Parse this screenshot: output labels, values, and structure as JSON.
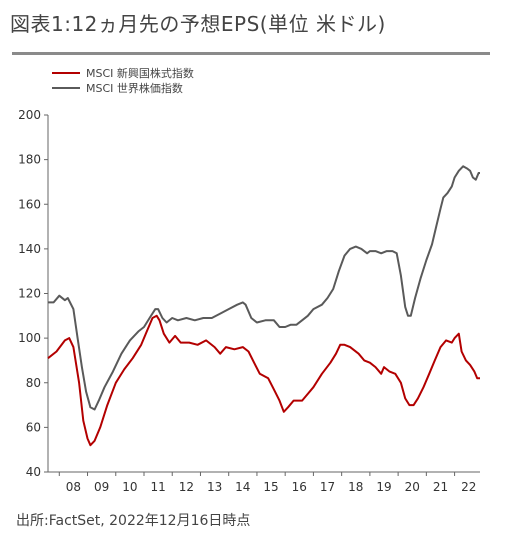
{
  "title": "図表1:12ヵ月先の予想EPS(単位 米ドル)",
  "source": "出所:FactSet, 2022年12月16日時点",
  "chart_data": {
    "type": "line",
    "title": "図表1:12ヵ月先の予想EPS(単位 米ドル)",
    "xlabel": "",
    "ylabel": "",
    "ylim": [
      40,
      200
    ],
    "yticks": [
      40,
      60,
      80,
      100,
      120,
      140,
      160,
      180,
      200
    ],
    "xlim": [
      2007.6,
      2022.9
    ],
    "xticks": [
      {
        "label": "08",
        "x": 2008.5
      },
      {
        "label": "09",
        "x": 2009.5
      },
      {
        "label": "10",
        "x": 2010.5
      },
      {
        "label": "11",
        "x": 2011.5
      },
      {
        "label": "12",
        "x": 2012.5
      },
      {
        "label": "13",
        "x": 2013.5
      },
      {
        "label": "14",
        "x": 2014.5
      },
      {
        "label": "15",
        "x": 2015.5
      },
      {
        "label": "16",
        "x": 2016.5
      },
      {
        "label": "17",
        "x": 2017.5
      },
      {
        "label": "18",
        "x": 2018.5
      },
      {
        "label": "19",
        "x": 2019.5
      },
      {
        "label": "20",
        "x": 2020.5
      },
      {
        "label": "21",
        "x": 2021.5
      },
      {
        "label": "22",
        "x": 2022.5
      }
    ],
    "grid": false,
    "legend": "top-left",
    "series": [
      {
        "name": "MSCI 新興国株式指数",
        "color": "#b30000",
        "points": [
          [
            2007.6,
            91
          ],
          [
            2007.9,
            94
          ],
          [
            2008.2,
            99
          ],
          [
            2008.35,
            100
          ],
          [
            2008.5,
            96
          ],
          [
            2008.7,
            80
          ],
          [
            2008.85,
            63
          ],
          [
            2009.0,
            55
          ],
          [
            2009.1,
            52
          ],
          [
            2009.25,
            54
          ],
          [
            2009.45,
            60
          ],
          [
            2009.7,
            70
          ],
          [
            2010.0,
            80
          ],
          [
            2010.3,
            86
          ],
          [
            2010.6,
            91
          ],
          [
            2010.9,
            97
          ],
          [
            2011.1,
            103
          ],
          [
            2011.3,
            109
          ],
          [
            2011.45,
            110
          ],
          [
            2011.55,
            108
          ],
          [
            2011.7,
            102
          ],
          [
            2011.9,
            98
          ],
          [
            2012.1,
            101
          ],
          [
            2012.3,
            98
          ],
          [
            2012.6,
            98
          ],
          [
            2012.9,
            97
          ],
          [
            2013.2,
            99
          ],
          [
            2013.5,
            96
          ],
          [
            2013.7,
            93
          ],
          [
            2013.9,
            96
          ],
          [
            2014.2,
            95
          ],
          [
            2014.5,
            96
          ],
          [
            2014.7,
            94
          ],
          [
            2014.9,
            89
          ],
          [
            2015.1,
            84
          ],
          [
            2015.4,
            82
          ],
          [
            2015.6,
            77
          ],
          [
            2015.8,
            72
          ],
          [
            2015.95,
            67
          ],
          [
            2016.1,
            69
          ],
          [
            2016.3,
            72
          ],
          [
            2016.6,
            72
          ],
          [
            2016.8,
            75
          ],
          [
            2017.0,
            78
          ],
          [
            2017.3,
            84
          ],
          [
            2017.6,
            89
          ],
          [
            2017.8,
            93
          ],
          [
            2017.95,
            97
          ],
          [
            2018.1,
            97
          ],
          [
            2018.3,
            96
          ],
          [
            2018.6,
            93
          ],
          [
            2018.8,
            90
          ],
          [
            2019.0,
            89
          ],
          [
            2019.2,
            87
          ],
          [
            2019.4,
            84
          ],
          [
            2019.5,
            87
          ],
          [
            2019.7,
            85
          ],
          [
            2019.9,
            84
          ],
          [
            2020.1,
            80
          ],
          [
            2020.25,
            73
          ],
          [
            2020.4,
            70
          ],
          [
            2020.55,
            70
          ],
          [
            2020.7,
            73
          ],
          [
            2020.9,
            78
          ],
          [
            2021.1,
            84
          ],
          [
            2021.3,
            90
          ],
          [
            2021.5,
            96
          ],
          [
            2021.7,
            99
          ],
          [
            2021.9,
            98
          ],
          [
            2022.0,
            100
          ],
          [
            2022.15,
            102
          ],
          [
            2022.25,
            94
          ],
          [
            2022.4,
            90
          ],
          [
            2022.55,
            88
          ],
          [
            2022.7,
            85
          ],
          [
            2022.8,
            82
          ],
          [
            2022.9,
            82
          ]
        ]
      },
      {
        "name": "MSCI 世界株価指数",
        "color": "#5a5a5a",
        "points": [
          [
            2007.6,
            116
          ],
          [
            2007.8,
            116
          ],
          [
            2008.0,
            119
          ],
          [
            2008.2,
            117
          ],
          [
            2008.3,
            118
          ],
          [
            2008.5,
            113
          ],
          [
            2008.65,
            100
          ],
          [
            2008.8,
            87
          ],
          [
            2008.95,
            76
          ],
          [
            2009.1,
            69
          ],
          [
            2009.25,
            68
          ],
          [
            2009.4,
            72
          ],
          [
            2009.6,
            78
          ],
          [
            2009.9,
            85
          ],
          [
            2010.2,
            93
          ],
          [
            2010.5,
            99
          ],
          [
            2010.8,
            103
          ],
          [
            2011.0,
            105
          ],
          [
            2011.2,
            109
          ],
          [
            2011.4,
            113
          ],
          [
            2011.5,
            113
          ],
          [
            2011.65,
            109
          ],
          [
            2011.8,
            107
          ],
          [
            2012.0,
            109
          ],
          [
            2012.2,
            108
          ],
          [
            2012.5,
            109
          ],
          [
            2012.8,
            108
          ],
          [
            2013.1,
            109
          ],
          [
            2013.4,
            109
          ],
          [
            2013.7,
            111
          ],
          [
            2014.0,
            113
          ],
          [
            2014.3,
            115
          ],
          [
            2014.5,
            116
          ],
          [
            2014.6,
            115
          ],
          [
            2014.8,
            109
          ],
          [
            2015.0,
            107
          ],
          [
            2015.3,
            108
          ],
          [
            2015.6,
            108
          ],
          [
            2015.8,
            105
          ],
          [
            2016.0,
            105
          ],
          [
            2016.2,
            106
          ],
          [
            2016.4,
            106
          ],
          [
            2016.6,
            108
          ],
          [
            2016.8,
            110
          ],
          [
            2017.0,
            113
          ],
          [
            2017.3,
            115
          ],
          [
            2017.5,
            118
          ],
          [
            2017.7,
            122
          ],
          [
            2017.9,
            130
          ],
          [
            2018.1,
            137
          ],
          [
            2018.3,
            140
          ],
          [
            2018.5,
            141
          ],
          [
            2018.7,
            140
          ],
          [
            2018.9,
            138
          ],
          [
            2019.0,
            139
          ],
          [
            2019.2,
            139
          ],
          [
            2019.4,
            138
          ],
          [
            2019.6,
            139
          ],
          [
            2019.8,
            139
          ],
          [
            2019.95,
            138
          ],
          [
            2020.1,
            128
          ],
          [
            2020.25,
            114
          ],
          [
            2020.35,
            110
          ],
          [
            2020.45,
            110
          ],
          [
            2020.6,
            118
          ],
          [
            2020.8,
            127
          ],
          [
            2021.0,
            135
          ],
          [
            2021.2,
            142
          ],
          [
            2021.35,
            150
          ],
          [
            2021.5,
            158
          ],
          [
            2021.6,
            163
          ],
          [
            2021.75,
            165
          ],
          [
            2021.9,
            168
          ],
          [
            2022.0,
            172
          ],
          [
            2022.15,
            175
          ],
          [
            2022.3,
            177
          ],
          [
            2022.45,
            176
          ],
          [
            2022.55,
            175
          ],
          [
            2022.65,
            172
          ],
          [
            2022.75,
            171
          ],
          [
            2022.85,
            174
          ],
          [
            2022.9,
            174
          ]
        ]
      }
    ]
  }
}
